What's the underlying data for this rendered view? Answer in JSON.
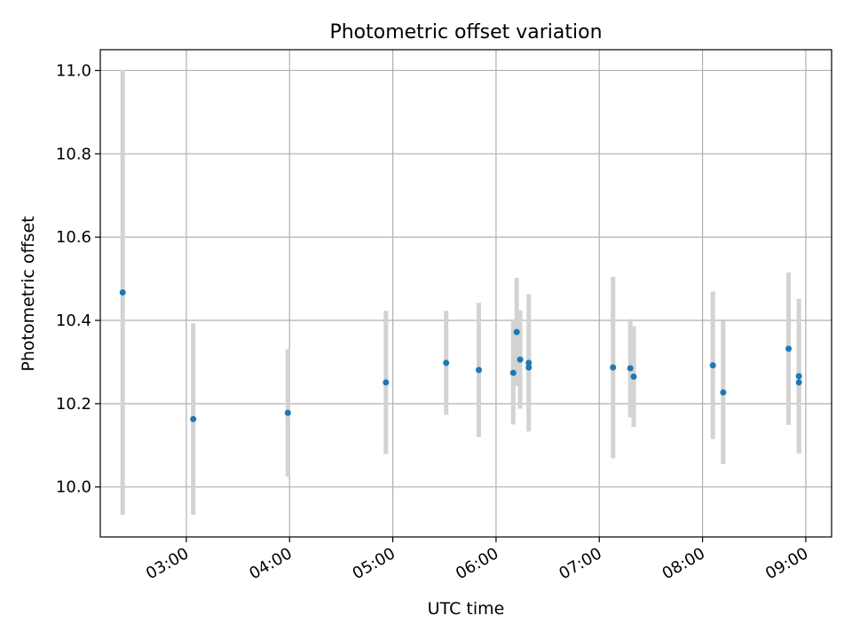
{
  "chart_data": {
    "type": "scatter",
    "title": "Photometric offset variation",
    "xlabel": "UTC time",
    "ylabel": "Photometric offset",
    "x_unit": "UTC time of day",
    "xlim": [
      "02:10",
      "09:15"
    ],
    "ylim": [
      9.88,
      11.05
    ],
    "grid": true,
    "legend": "none",
    "x_ticks": [
      "03:00",
      "04:00",
      "05:00",
      "06:00",
      "07:00",
      "08:00",
      "09:00"
    ],
    "y_ticks": [
      "10.0",
      "10.2",
      "10.4",
      "10.6",
      "10.8",
      "11.0"
    ],
    "series": [
      {
        "marker_color": "#1f77b4",
        "errorbar_color": "#d3d3d3",
        "points": [
          {
            "x": "02:23",
            "y": 10.467,
            "yerr": 0.534
          },
          {
            "x": "03:04",
            "y": 10.163,
            "yerr": 0.23
          },
          {
            "x": "03:59",
            "y": 10.178,
            "yerr": 0.153
          },
          {
            "x": "04:56",
            "y": 10.251,
            "yerr": 0.172
          },
          {
            "x": "05:31",
            "y": 10.298,
            "yerr": 0.125
          },
          {
            "x": "05:50",
            "y": 10.281,
            "yerr": 0.161
          },
          {
            "x": "06:10",
            "y": 10.274,
            "yerr": 0.124
          },
          {
            "x": "06:12",
            "y": 10.372,
            "yerr": 0.13
          },
          {
            "x": "06:14",
            "y": 10.306,
            "yerr": 0.118
          },
          {
            "x": "06:19",
            "y": 10.298,
            "yerr": 0.165
          },
          {
            "x": "06:19",
            "y": 10.287,
            "yerr": 0.1
          },
          {
            "x": "07:08",
            "y": 10.287,
            "yerr": 0.218
          },
          {
            "x": "07:18",
            "y": 10.285,
            "yerr": 0.118
          },
          {
            "x": "07:20",
            "y": 10.265,
            "yerr": 0.121
          },
          {
            "x": "08:06",
            "y": 10.292,
            "yerr": 0.177
          },
          {
            "x": "08:12",
            "y": 10.227,
            "yerr": 0.172
          },
          {
            "x": "08:50",
            "y": 10.332,
            "yerr": 0.183
          },
          {
            "x": "08:56",
            "y": 10.266,
            "yerr": 0.186
          },
          {
            "x": "08:56",
            "y": 10.251,
            "yerr": 0.168
          }
        ]
      }
    ]
  }
}
